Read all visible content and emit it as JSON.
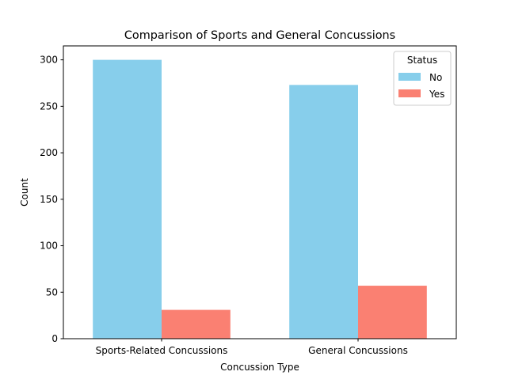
{
  "chart_data": {
    "type": "bar",
    "title": "Comparison of Sports and General Concussions",
    "xlabel": "Concussion Type",
    "ylabel": "Count",
    "categories": [
      "Sports-Related Concussions",
      "General Concussions"
    ],
    "series": [
      {
        "name": "No",
        "values": [
          300,
          273
        ],
        "color": "#87CEEB"
      },
      {
        "name": "Yes",
        "values": [
          31,
          57
        ],
        "color": "#FA8072"
      }
    ],
    "ylim": [
      0,
      315
    ],
    "yticks": [
      0,
      50,
      100,
      150,
      200,
      250,
      300
    ],
    "grid": false,
    "legend": {
      "title": "Status",
      "placement": "top-right"
    }
  }
}
